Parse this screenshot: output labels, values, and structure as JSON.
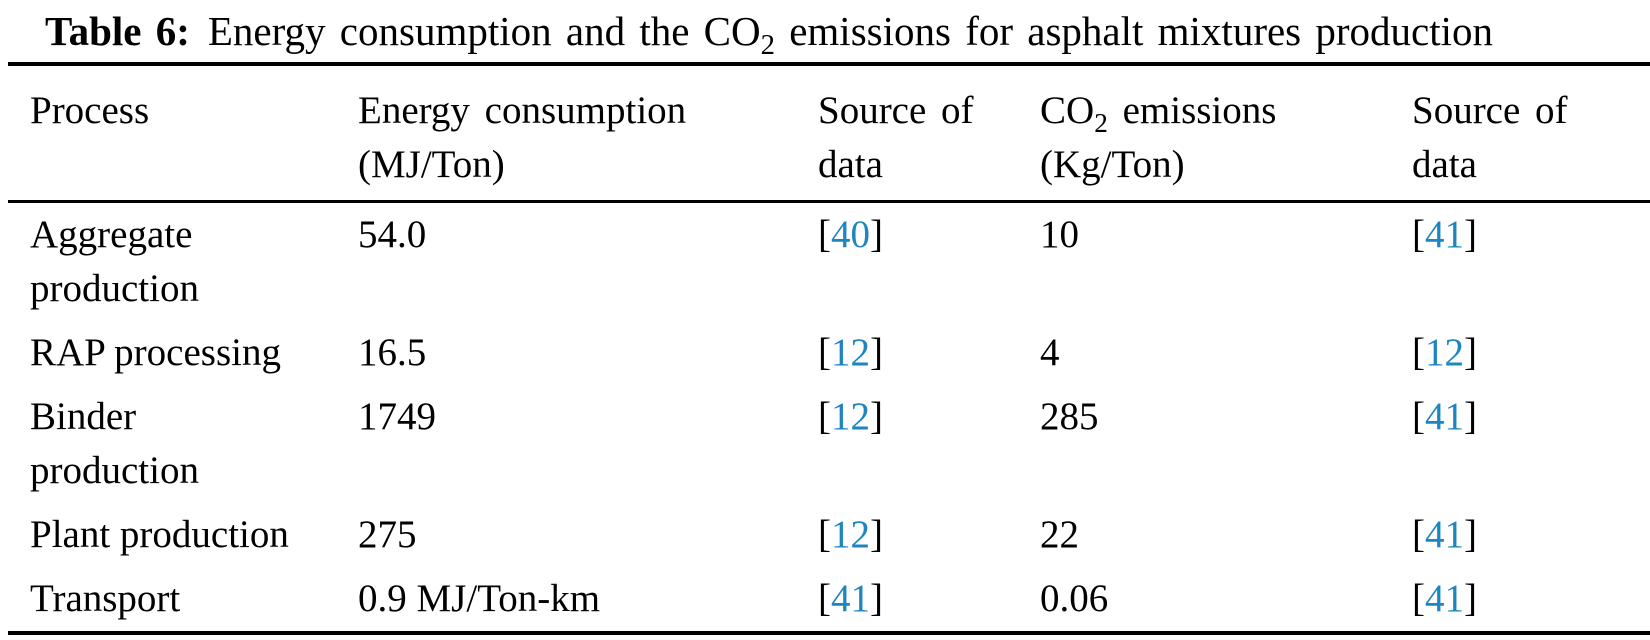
{
  "colors": {
    "link": "#1d85bf",
    "text": "#000000",
    "background": "#ffffff"
  },
  "caption": {
    "label": "Table 6:",
    "text_pre": "Energy consumption and the CO",
    "text_sub": "2",
    "text_post": " emissions for asphalt mixtures production"
  },
  "headers": {
    "process": "Process",
    "energy_line1": "Energy consumption",
    "energy_line2": "(MJ/Ton)",
    "source1_line1": "Source of",
    "source1_line2": "data",
    "co2_line1_pre": "CO",
    "co2_line1_sub": "2",
    "co2_line1_post": " emissions",
    "co2_line2": "(Kg/Ton)",
    "source2_line1": "Source of",
    "source2_line2": "data"
  },
  "brackets": {
    "open": "[",
    "close": "]"
  },
  "rows": [
    {
      "process": "Aggregate\nproduction",
      "energy": "54.0",
      "energy_ref": "40",
      "co2": "10",
      "co2_ref": "41"
    },
    {
      "process": "RAP processing",
      "energy": "16.5",
      "energy_ref": "12",
      "co2": "4",
      "co2_ref": "12"
    },
    {
      "process": "Binder\nproduction",
      "energy": "1749",
      "energy_ref": "12",
      "co2": "285",
      "co2_ref": "41"
    },
    {
      "process": "Plant production",
      "energy": "275",
      "energy_ref": "12",
      "co2": "22",
      "co2_ref": "41"
    },
    {
      "process": "Transport",
      "energy": "0.9 MJ/Ton-km",
      "energy_ref": "41",
      "co2": "0.06",
      "co2_ref": "41"
    }
  ]
}
